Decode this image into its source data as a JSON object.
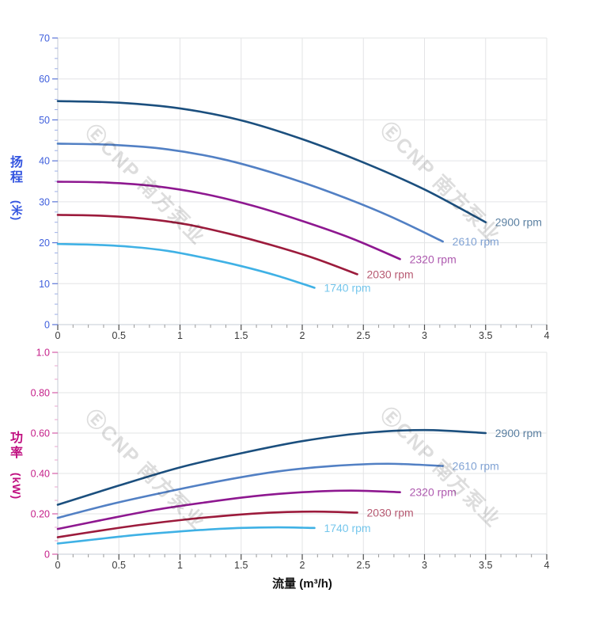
{
  "watermark": {
    "text": "ⒺCNP 南方泵业"
  },
  "axes": {
    "head_y_chars": "扬程",
    "head_y_unit": "(米)",
    "power_y_chars": "功率",
    "power_y_unit": "(kW)",
    "x_title": "流量 (m³/h)"
  },
  "chart_data": [
    {
      "id": "head",
      "type": "line",
      "title": "",
      "ylabel": "扬程 (米)",
      "xlabel": "流量 (m³/h)",
      "xlim": [
        0,
        4
      ],
      "ylim": [
        0,
        70
      ],
      "grid": true,
      "legend_position": "right-of-curve-end",
      "x_tick_values": [
        0,
        0.5,
        1,
        1.5,
        2,
        2.5,
        3,
        3.5,
        4
      ],
      "x_tick_labels": [
        "0",
        "0.5",
        "1",
        "1.5",
        "2",
        "2.5",
        "3",
        "3.5",
        "4"
      ],
      "y_tick_values": [
        0,
        10,
        20,
        30,
        40,
        50,
        60,
        70
      ],
      "y_tick_labels": [
        "0",
        "10",
        "20",
        "30",
        "40",
        "50",
        "60",
        "70"
      ],
      "x_minor_per_interval": 3,
      "y_minor_per_interval": 3,
      "y_color": "#3f5fdd",
      "y_tick_color": "#5c76d8",
      "y_minor_tick_color": "#9dafe8",
      "x_label_color": "#3a3a3a",
      "x_tick_color": "#4d4d4d",
      "x_minor_tick_color": "#9a9a9a",
      "grid_color": "#e3e4e6",
      "axis_line_color": "#c6cbd4",
      "series": [
        {
          "name": "2900 rpm",
          "color": "#1b4f7e",
          "points": [
            [
              0,
              54.6
            ],
            [
              0.5,
              54.2
            ],
            [
              1,
              52.8
            ],
            [
              1.5,
              49.9
            ],
            [
              2,
              45.3
            ],
            [
              2.5,
              39.6
            ],
            [
              3,
              33.0
            ],
            [
              3.5,
              25.0
            ]
          ]
        },
        {
          "name": "2610 rpm",
          "color": "#5280c4",
          "points": [
            [
              0,
              44.2
            ],
            [
              0.45,
              43.9
            ],
            [
              0.9,
              42.8
            ],
            [
              1.35,
              40.4
            ],
            [
              1.8,
              36.7
            ],
            [
              2.25,
              32.1
            ],
            [
              2.7,
              26.7
            ],
            [
              3.15,
              20.3
            ]
          ]
        },
        {
          "name": "2320 rpm",
          "color": "#8e1890",
          "points": [
            [
              0,
              34.9
            ],
            [
              0.4,
              34.7
            ],
            [
              0.8,
              33.8
            ],
            [
              1.2,
              31.9
            ],
            [
              1.6,
              29.0
            ],
            [
              2.0,
              25.3
            ],
            [
              2.4,
              21.1
            ],
            [
              2.8,
              16.0
            ]
          ]
        },
        {
          "name": "2030 rpm",
          "color": "#9c1b3c",
          "points": [
            [
              0,
              26.8
            ],
            [
              0.35,
              26.6
            ],
            [
              0.7,
              25.9
            ],
            [
              1.05,
              24.5
            ],
            [
              1.4,
              22.2
            ],
            [
              1.75,
              19.4
            ],
            [
              2.1,
              16.2
            ],
            [
              2.45,
              12.3
            ]
          ]
        },
        {
          "name": "1740 rpm",
          "color": "#3fb1e5",
          "points": [
            [
              0,
              19.7
            ],
            [
              0.3,
              19.5
            ],
            [
              0.6,
              19.0
            ],
            [
              0.9,
              18.0
            ],
            [
              1.2,
              16.3
            ],
            [
              1.5,
              14.3
            ],
            [
              1.8,
              11.9
            ],
            [
              2.1,
              9.0
            ]
          ]
        }
      ]
    },
    {
      "id": "power",
      "type": "line",
      "title": "",
      "ylabel": "功率 (kW)",
      "xlabel": "流量 (m³/h)",
      "xlim": [
        0,
        4
      ],
      "ylim": [
        0,
        1
      ],
      "grid": true,
      "legend_position": "right-of-curve-end",
      "x_tick_values": [
        0,
        0.5,
        1,
        1.5,
        2,
        2.5,
        3,
        3.5,
        4
      ],
      "x_tick_labels": [
        "0",
        "0.5",
        "1",
        "1.5",
        "2",
        "2.5",
        "3",
        "3.5",
        "4"
      ],
      "y_tick_values": [
        0,
        0.2,
        0.4,
        0.6,
        0.8,
        1.0
      ],
      "y_tick_labels": [
        "0",
        "0.20",
        "0.40",
        "0.60",
        "0.80",
        "1.0"
      ],
      "x_minor_per_interval": 3,
      "y_minor_per_interval": 2,
      "y_color": "#c5208a",
      "y_tick_color": "#d45ca8",
      "y_minor_tick_color": "#eaa6cf",
      "x_label_color": "#3a3a3a",
      "x_tick_color": "#4d4d4d",
      "x_minor_tick_color": "#9a9a9a",
      "grid_color": "#e3e4e6",
      "axis_line_color": "#c6cbd4",
      "series": [
        {
          "name": "2900 rpm",
          "color": "#1b4f7e",
          "points": [
            [
              0,
              0.245
            ],
            [
              0.5,
              0.34
            ],
            [
              1,
              0.43
            ],
            [
              1.5,
              0.5
            ],
            [
              2,
              0.56
            ],
            [
              2.5,
              0.6
            ],
            [
              3,
              0.615
            ],
            [
              3.5,
              0.6
            ]
          ]
        },
        {
          "name": "2610 rpm",
          "color": "#5280c4",
          "points": [
            [
              0,
              0.18
            ],
            [
              0.45,
              0.25
            ],
            [
              0.9,
              0.31
            ],
            [
              1.35,
              0.365
            ],
            [
              1.8,
              0.41
            ],
            [
              2.25,
              0.437
            ],
            [
              2.7,
              0.448
            ],
            [
              3.15,
              0.437
            ]
          ]
        },
        {
          "name": "2320 rpm",
          "color": "#8e1890",
          "points": [
            [
              0,
              0.125
            ],
            [
              0.4,
              0.174
            ],
            [
              0.8,
              0.22
            ],
            [
              1.2,
              0.256
            ],
            [
              1.6,
              0.287
            ],
            [
              2.0,
              0.307
            ],
            [
              2.4,
              0.315
            ],
            [
              2.8,
              0.307
            ]
          ]
        },
        {
          "name": "2030 rpm",
          "color": "#9c1b3c",
          "points": [
            [
              0,
              0.084
            ],
            [
              0.35,
              0.117
            ],
            [
              0.7,
              0.147
            ],
            [
              1.05,
              0.172
            ],
            [
              1.4,
              0.192
            ],
            [
              1.75,
              0.206
            ],
            [
              2.1,
              0.211
            ],
            [
              2.45,
              0.206
            ]
          ]
        },
        {
          "name": "1740 rpm",
          "color": "#3fb1e5",
          "points": [
            [
              0,
              0.053
            ],
            [
              0.3,
              0.073
            ],
            [
              0.6,
              0.093
            ],
            [
              0.9,
              0.108
            ],
            [
              1.2,
              0.121
            ],
            [
              1.5,
              0.13
            ],
            [
              1.8,
              0.133
            ],
            [
              2.1,
              0.13
            ]
          ]
        }
      ]
    }
  ]
}
